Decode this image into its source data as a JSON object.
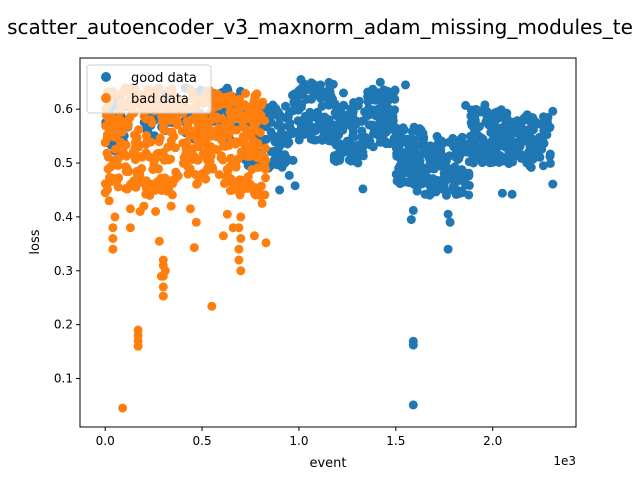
{
  "chart_data": {
    "type": "scatter",
    "title": "scatter_autoencoder_v3_maxnorm_adam_missing_modules_te",
    "xlabel": "event",
    "ylabel": "loss",
    "x_offset_label": "1e3",
    "xlim": [
      -0.13,
      2.43
    ],
    "ylim": [
      0.01,
      0.695
    ],
    "x_ticks": [
      0.0,
      0.5,
      1.0,
      1.5,
      2.0
    ],
    "x_tick_labels": [
      "0.0",
      "0.5",
      "1.0",
      "1.5",
      "2.0"
    ],
    "y_ticks": [
      0.1,
      0.2,
      0.3,
      0.4,
      0.5,
      0.6
    ],
    "y_tick_labels": [
      "0.1",
      "0.2",
      "0.3",
      "0.4",
      "0.5",
      "0.6"
    ],
    "grid": false,
    "legend_position": "upper-left",
    "colors": {
      "good": "#1f77b4",
      "bad": "#ff7f0e"
    },
    "series": [
      {
        "name": "good data",
        "color": "#1f77b4",
        "segments": [
          {
            "x0": 0.0,
            "x1": 0.12,
            "ymin": 0.52,
            "ymax": 0.62,
            "n": 40
          },
          {
            "x0": 0.2,
            "x1": 0.36,
            "ymin": 0.55,
            "ymax": 0.63,
            "n": 50
          },
          {
            "x0": 0.4,
            "x1": 0.72,
            "ymin": 0.54,
            "ymax": 0.64,
            "n": 70
          },
          {
            "x0": 0.72,
            "x1": 0.95,
            "ymin": 0.49,
            "ymax": 0.61,
            "n": 90
          },
          {
            "x0": 0.95,
            "x1": 1.18,
            "ymin": 0.54,
            "ymax": 0.65,
            "n": 110
          },
          {
            "x0": 1.18,
            "x1": 1.35,
            "ymin": 0.5,
            "ymax": 0.62,
            "n": 90
          },
          {
            "x0": 1.35,
            "x1": 1.5,
            "ymin": 0.53,
            "ymax": 0.64,
            "n": 90
          },
          {
            "x0": 1.5,
            "x1": 1.65,
            "ymin": 0.46,
            "ymax": 0.57,
            "n": 100
          },
          {
            "x0": 1.65,
            "x1": 1.88,
            "ymin": 0.44,
            "ymax": 0.55,
            "n": 130
          },
          {
            "x0": 1.88,
            "x1": 2.08,
            "ymin": 0.5,
            "ymax": 0.6,
            "n": 110
          },
          {
            "x0": 2.08,
            "x1": 2.3,
            "ymin": 0.49,
            "ymax": 0.59,
            "n": 110
          }
        ],
        "points": [
          [
            1.59,
            0.051
          ],
          [
            1.59,
            0.162
          ],
          [
            1.59,
            0.169
          ],
          [
            1.58,
            0.395
          ],
          [
            1.59,
            0.412
          ],
          [
            1.61,
            0.448
          ],
          [
            1.77,
            0.34
          ],
          [
            1.77,
            0.405
          ],
          [
            1.78,
            0.39
          ],
          [
            1.33,
            0.452
          ],
          [
            0.9,
            0.45
          ],
          [
            0.98,
            0.458
          ],
          [
            0.95,
            0.477
          ],
          [
            1.55,
            0.645
          ],
          [
            1.86,
            0.607
          ],
          [
            2.05,
            0.444
          ],
          [
            2.1,
            0.442
          ],
          [
            2.31,
            0.461
          ],
          [
            2.31,
            0.596
          ],
          [
            1.23,
            0.63
          ],
          [
            0.97,
            0.505
          ],
          [
            1.01,
            0.655
          ],
          [
            1.42,
            0.65
          ],
          [
            1.96,
            0.608
          ],
          [
            2.17,
            0.552
          ]
        ]
      },
      {
        "name": "bad data",
        "color": "#ff7f0e",
        "segments": [
          {
            "x0": 0.0,
            "x1": 0.2,
            "ymin": 0.45,
            "ymax": 0.64,
            "n": 130
          },
          {
            "x0": 0.2,
            "x1": 0.35,
            "ymin": 0.44,
            "ymax": 0.64,
            "n": 90
          },
          {
            "x0": 0.35,
            "x1": 0.55,
            "ymin": 0.46,
            "ymax": 0.64,
            "n": 110
          },
          {
            "x0": 0.55,
            "x1": 0.7,
            "ymin": 0.44,
            "ymax": 0.63,
            "n": 90
          },
          {
            "x0": 0.7,
            "x1": 0.83,
            "ymin": 0.44,
            "ymax": 0.63,
            "n": 80
          }
        ],
        "points": [
          [
            0.09,
            0.045
          ],
          [
            0.17,
            0.16
          ],
          [
            0.17,
            0.17
          ],
          [
            0.17,
            0.18
          ],
          [
            0.17,
            0.19
          ],
          [
            0.55,
            0.234
          ],
          [
            0.3,
            0.253
          ],
          [
            0.3,
            0.27
          ],
          [
            0.3,
            0.29
          ],
          [
            0.3,
            0.31
          ],
          [
            0.3,
            0.32
          ],
          [
            0.7,
            0.3
          ],
          [
            0.69,
            0.32
          ],
          [
            0.69,
            0.34
          ],
          [
            0.7,
            0.36
          ],
          [
            0.69,
            0.38
          ],
          [
            0.46,
            0.343
          ],
          [
            0.83,
            0.352
          ],
          [
            0.77,
            0.365
          ],
          [
            0.04,
            0.34
          ],
          [
            0.04,
            0.36
          ],
          [
            0.04,
            0.38
          ],
          [
            0.05,
            0.4
          ],
          [
            0.13,
            0.38
          ],
          [
            0.13,
            0.415
          ],
          [
            0.18,
            0.41
          ],
          [
            0.2,
            0.42
          ],
          [
            0.26,
            0.41
          ],
          [
            0.34,
            0.42
          ],
          [
            0.44,
            0.415
          ],
          [
            0.47,
            0.39
          ],
          [
            0.61,
            0.365
          ],
          [
            0.63,
            0.405
          ],
          [
            0.66,
            0.38
          ],
          [
            0.7,
            0.4
          ],
          [
            0.8,
            0.44
          ],
          [
            0.81,
            0.425
          ],
          [
            0.01,
            0.46
          ],
          [
            0.0,
            0.445
          ],
          [
            0.02,
            0.43
          ],
          [
            0.28,
            0.355
          ],
          [
            0.29,
            0.29
          ],
          [
            0.31,
            0.3
          ],
          [
            0.23,
            0.44
          ],
          [
            0.36,
            0.47
          ]
        ]
      }
    ]
  }
}
